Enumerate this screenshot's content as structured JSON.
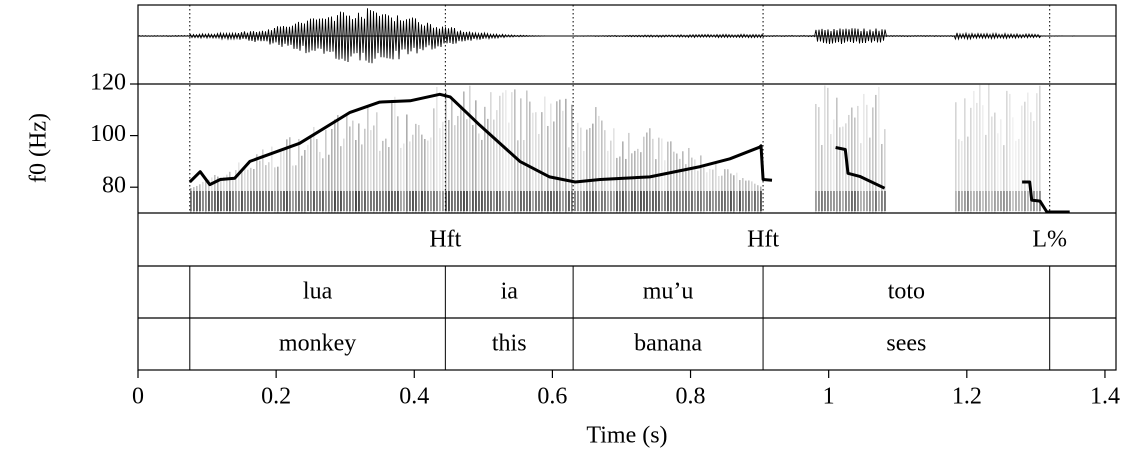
{
  "chart_data": {
    "type": "line",
    "x_label": "Time (s)",
    "y_label": "f0 (Hz)",
    "xlim": [
      0,
      1.416
    ],
    "xticks": [
      0,
      0.2,
      0.4,
      0.6,
      0.8,
      1,
      1.2,
      1.4
    ],
    "ylim": [
      70,
      120
    ],
    "yticks": [
      80,
      100,
      120
    ],
    "color": "#000000",
    "x": [
      0.075,
      0.09,
      0.104,
      0.119,
      0.14,
      0.162,
      0.234,
      0.307,
      0.35,
      0.394,
      0.437,
      0.452,
      0.495,
      0.553,
      0.596,
      0.633,
      0.669,
      0.741,
      0.814,
      0.857,
      0.9,
      0.902,
      0.905,
      0.918,
      null,
      1.01,
      1.024,
      1.028,
      1.045,
      1.081,
      null,
      1.28,
      1.291,
      1.294,
      1.306,
      1.316,
      1.349
    ],
    "values": [
      82,
      86,
      81,
      83,
      83.5,
      90,
      97,
      109,
      113,
      113.5,
      116,
      115,
      104,
      90,
      84,
      82,
      83,
      84,
      88,
      91,
      95.5,
      96,
      83,
      82.7,
      null,
      95.4,
      94.6,
      85.4,
      84.2,
      79.6,
      null,
      82,
      82,
      75,
      74.6,
      70.4,
      70.4
    ],
    "boundaries": [
      0.075,
      0.445,
      0.63,
      0.905,
      1.32
    ],
    "tones": [
      {
        "time": 0.445,
        "label": "Hft"
      },
      {
        "time": 0.905,
        "label": "Hft"
      },
      {
        "time": 1.32,
        "label": "L%"
      }
    ],
    "words": [
      "lua",
      "ia",
      "mu’u",
      "toto"
    ],
    "glosses": [
      "monkey",
      "this",
      "banana",
      "sees"
    ]
  }
}
